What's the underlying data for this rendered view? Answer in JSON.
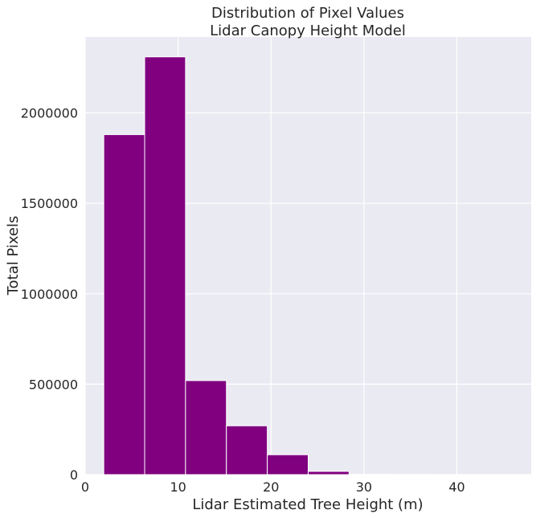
{
  "chart_data": {
    "type": "bar",
    "title": "Distribution of Pixel Values",
    "subtitle": "Lidar Canopy Height Model",
    "xlabel": "Lidar Estimated Tree Height (m)",
    "ylabel": "Total Pixels",
    "xlim": [
      0,
      48
    ],
    "ylim": [
      0,
      2420000
    ],
    "x_ticks": [
      0,
      10,
      20,
      30,
      40
    ],
    "y_ticks": [
      0,
      500000,
      1000000,
      1500000,
      2000000
    ],
    "x_tick_labels": [
      "0",
      "10",
      "20",
      "30",
      "40"
    ],
    "y_tick_labels": [
      "0",
      "500000",
      "1000000",
      "1500000",
      "2000000"
    ],
    "bin_edges": [
      2.0,
      6.4,
      10.8,
      15.2,
      19.6,
      24.0,
      28.4,
      32.8,
      37.2,
      41.6,
      46.0
    ],
    "values": [
      1880000,
      2310000,
      520000,
      270000,
      110000,
      18000,
      1500,
      300,
      100,
      50
    ],
    "bar_color": "#800080",
    "background_color": "#eaeaf2",
    "grid": true,
    "grid_color": "#ffffff"
  }
}
